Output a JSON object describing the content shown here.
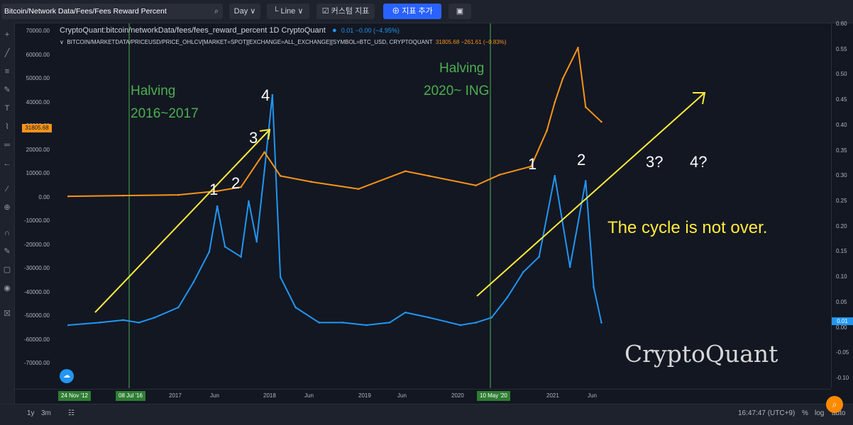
{
  "toolbar": {
    "symbol_search": "Bitcoin/Network Data/Fees/Fees Reward Percent",
    "interval": "Day",
    "chart_style": "Line",
    "custom_indicator": "커스텀 지표",
    "add_indicator": "지표 추가"
  },
  "legend": {
    "main_title": "CryptoQuant:bitcoin/networkData/fees/fees_reward_percent  1D  CryptoQuant",
    "main_values": "0.01  −0.00 (−4.95%)",
    "overlay_title": "BITCOIN/MARKETDATA/PRICEUSD/PRICE_OHLCV[MARKET=SPOT][EXCHANGE=ALL_EXCHANGE][SYMBOL=BTC_USD, CRYPTOQUANT",
    "overlay_values": "31805.68  −261.61 (−0.83%)"
  },
  "left_axis_labels": [
    "70000.00",
    "60000.00",
    "50000.00",
    "40000.00",
    "30000.00",
    "20000.00",
    "10000.00",
    "0.00",
    "-10000.00",
    "-20000.00",
    "-30000.00",
    "-40000.00",
    "-50000.00",
    "-60000.00",
    "-70000.00"
  ],
  "right_axis_labels": [
    "0.60",
    "0.55",
    "0.50",
    "0.45",
    "0.40",
    "0.35",
    "0.30",
    "0.25",
    "0.20",
    "0.15",
    "0.10",
    "0.05",
    "0.00",
    "-0.05",
    "-0.10"
  ],
  "price_tag": "31805.68",
  "right_tag": "0.01",
  "time_axis": {
    "tags": [
      "24 Nov '12",
      "08 Jul '16",
      "10 May '20"
    ],
    "labels": [
      "2017",
      "Jun",
      "2018",
      "Jun",
      "2019",
      "Jun",
      "2020",
      "2021",
      "Jun"
    ]
  },
  "annotations": {
    "halving1_line1": "Halving",
    "halving1_line2": "2016~2017",
    "halving2_line1": "Halving",
    "halving2_line2": "2020~ ING",
    "n1a": "1",
    "n2a": "2",
    "n3a": "3",
    "n4a": "4",
    "n1b": "1",
    "n2b": "2",
    "n3b": "3?",
    "n4b": "4?",
    "cycle": "The cycle is not over."
  },
  "watermark": "CryptoQuant",
  "bottombar": {
    "range_1y": "1y",
    "range_3m": "3m",
    "clock": "16:47:47 (UTC+9)",
    "percent": "%",
    "log": "log",
    "auto": "auto"
  },
  "colors": {
    "background": "#131722",
    "fees_line": "#2196f3",
    "price_line": "#f7931a",
    "halving_line": "#4caf50",
    "arrow": "#ffeb3b"
  },
  "chart_data": {
    "type": "line",
    "series": [
      {
        "name": "fees_reward_percent",
        "axis": "right",
        "x": [
          "2015-11",
          "2016-03",
          "2016-06",
          "2016-08",
          "2016-10",
          "2017-01",
          "2017-03",
          "2017-05",
          "2017-06",
          "2017-07",
          "2017-09",
          "2017-10",
          "2017-11",
          "2017-12",
          "2018-01",
          "2018-02",
          "2018-04",
          "2018-07",
          "2018-10",
          "2019-01",
          "2019-04",
          "2019-06",
          "2019-09",
          "2020-01",
          "2020-03",
          "2020-05",
          "2020-07",
          "2020-09",
          "2020-11",
          "2021-01",
          "2021-03",
          "2021-05",
          "2021-06",
          "2021-07"
        ],
        "values": [
          0.005,
          0.01,
          0.015,
          0.01,
          0.02,
          0.04,
          0.09,
          0.15,
          0.24,
          0.16,
          0.14,
          0.25,
          0.17,
          0.31,
          0.46,
          0.1,
          0.04,
          0.01,
          0.01,
          0.005,
          0.01,
          0.03,
          0.02,
          0.005,
          0.01,
          0.02,
          0.06,
          0.11,
          0.14,
          0.3,
          0.12,
          0.29,
          0.08,
          0.01
        ]
      },
      {
        "name": "BTC price USD",
        "axis": "left",
        "x": [
          "2015-11",
          "2016-06",
          "2017-01",
          "2017-06",
          "2017-09",
          "2017-12",
          "2018-02",
          "2018-06",
          "2018-12",
          "2019-06",
          "2019-09",
          "2020-03",
          "2020-06",
          "2020-10",
          "2020-12",
          "2021-01",
          "2021-02",
          "2021-04",
          "2021-05",
          "2021-07"
        ],
        "values": [
          400,
          700,
          1000,
          2600,
          4300,
          19000,
          9000,
          6500,
          3500,
          11000,
          9000,
          5000,
          9500,
          13000,
          28000,
          40000,
          50000,
          63000,
          38000,
          31805.68
        ]
      }
    ],
    "left_ylim": [
      -70000,
      70000
    ],
    "right_ylim": [
      -0.1,
      0.6
    ],
    "halvings": [
      "2016-07-08",
      "2020-05-10"
    ],
    "grid": false
  }
}
